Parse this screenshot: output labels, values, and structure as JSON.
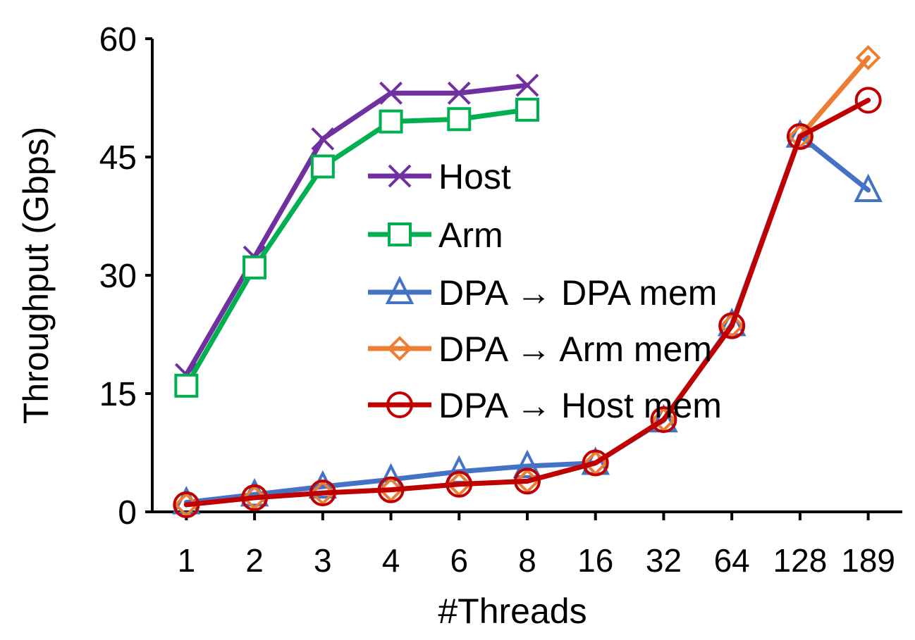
{
  "chart_data": {
    "type": "line",
    "title": "",
    "xlabel": "#Threads",
    "ylabel": "Throughput (Gbps)",
    "categories": [
      "1",
      "2",
      "3",
      "4",
      "6",
      "8",
      "16",
      "32",
      "64",
      "128",
      "189"
    ],
    "ylim": [
      0,
      60
    ],
    "yticks": [
      0,
      15,
      30,
      45,
      60
    ],
    "grid": false,
    "legend": "center",
    "series": [
      {
        "name": "Host",
        "color": "#7030A0",
        "marker": "x",
        "values": [
          17.4,
          32.3,
          47.3,
          53.1,
          53.1,
          54.1,
          null,
          null,
          null,
          null,
          null
        ]
      },
      {
        "name": "Arm",
        "color": "#00B050",
        "marker": "square",
        "values": [
          16.0,
          31.0,
          43.8,
          49.5,
          49.8,
          51.0,
          null,
          null,
          null,
          null,
          null
        ]
      },
      {
        "name": "DPA → DPA mem",
        "color": "#4472C4",
        "marker": "triangle",
        "values": [
          1.2,
          2.2,
          3.2,
          4.1,
          5.1,
          5.8,
          6.2,
          11.6,
          23.8,
          47.7,
          40.8
        ]
      },
      {
        "name": "DPA → Arm mem",
        "color": "#ED7D31",
        "marker": "diamond",
        "values": [
          0.9,
          1.8,
          2.4,
          2.8,
          3.5,
          3.9,
          6.2,
          11.7,
          23.6,
          47.6,
          57.6
        ]
      },
      {
        "name": "DPA → Host mem",
        "color": "#C00000",
        "marker": "circle",
        "values": [
          0.9,
          1.8,
          2.4,
          2.8,
          3.5,
          3.9,
          6.2,
          11.7,
          23.6,
          47.6,
          52.2
        ]
      }
    ]
  }
}
